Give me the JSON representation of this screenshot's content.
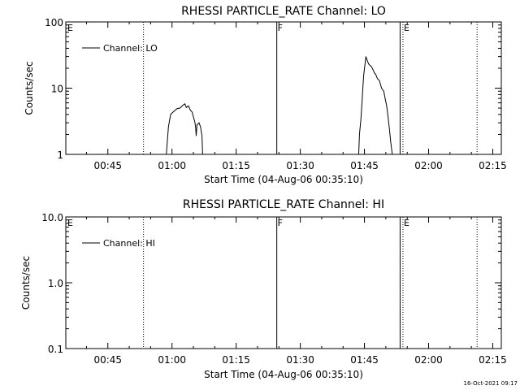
{
  "timestamp": "16-Oct-2021 09:17",
  "chart_data": [
    {
      "type": "line",
      "title": "RHESSI PARTICLE_RATE Channel: LO",
      "xlabel": "Start Time (04-Aug-06 00:35:10)",
      "ylabel": "Counts/sec",
      "y_scale": "log",
      "ylim": [
        1,
        100
      ],
      "xlim": [
        "00:35:10",
        "02:17:00"
      ],
      "x_ticks": [
        "00:45",
        "01:00",
        "01:15",
        "01:30",
        "01:45",
        "02:00",
        "02:15"
      ],
      "y_ticks": [
        "1",
        "10",
        "100"
      ],
      "legend": {
        "placement": "top-left",
        "entries": [
          "Channel: LO"
        ]
      },
      "markers": [
        {
          "label": "E",
          "time": "00:35:10",
          "style": "none"
        },
        {
          "label": "",
          "time": "00:53:20",
          "style": "dotted"
        },
        {
          "label": "F",
          "time": "01:24:30",
          "style": "solid"
        },
        {
          "label": "",
          "time": "01:53:20",
          "style": "solid"
        },
        {
          "label": "E",
          "time": "01:54:00",
          "style": "dotted"
        },
        {
          "label": "",
          "time": "02:11:20",
          "style": "dotted"
        }
      ],
      "series": [
        {
          "name": "Channel: LO",
          "segments": [
            [
              [
                "00:58:40",
                1.0
              ],
              [
                "00:59:10",
                2.6
              ],
              [
                "00:59:40",
                4.0
              ],
              [
                "01:00:30",
                4.5
              ],
              [
                "01:01:10",
                4.9
              ],
              [
                "01:01:50",
                5.0
              ],
              [
                "01:02:30",
                5.5
              ],
              [
                "01:03:00",
                5.8
              ],
              [
                "01:03:20",
                5.1
              ],
              [
                "01:03:50",
                5.4
              ],
              [
                "01:04:20",
                4.6
              ],
              [
                "01:04:40",
                4.4
              ],
              [
                "01:05:00",
                3.7
              ],
              [
                "01:05:20",
                3.1
              ],
              [
                "01:05:30",
                2.6
              ],
              [
                "01:05:40",
                1.9
              ],
              [
                "01:05:50",
                2.8
              ],
              [
                "01:06:20",
                3.0
              ],
              [
                "01:06:40",
                2.6
              ],
              [
                "01:07:00",
                1.9
              ],
              [
                "01:07:10",
                1.0
              ]
            ],
            [
              [
                "01:43:40",
                1.0
              ],
              [
                "01:43:50",
                2.0
              ],
              [
                "01:44:10",
                3.4
              ],
              [
                "01:44:20",
                5.0
              ],
              [
                "01:44:40",
                11.0
              ],
              [
                "01:44:50",
                16.0
              ],
              [
                "01:45:10",
                24.0
              ],
              [
                "01:45:20",
                30.0
              ],
              [
                "01:45:40",
                26.0
              ],
              [
                "01:46:00",
                23.0
              ],
              [
                "01:46:20",
                22.0
              ],
              [
                "01:46:40",
                21.0
              ],
              [
                "01:47:00",
                19.0
              ],
              [
                "01:47:20",
                17.0
              ],
              [
                "01:47:40",
                16.0
              ],
              [
                "01:48:00",
                14.0
              ],
              [
                "01:48:30",
                13.0
              ],
              [
                "01:49:00",
                10.0
              ],
              [
                "01:49:30",
                9.0
              ],
              [
                "01:49:50",
                7.0
              ],
              [
                "01:50:10",
                5.5
              ],
              [
                "01:50:30",
                3.8
              ],
              [
                "01:50:50",
                2.4
              ],
              [
                "01:51:10",
                1.5
              ],
              [
                "01:51:30",
                1.0
              ]
            ]
          ]
        }
      ]
    },
    {
      "type": "line",
      "title": "RHESSI PARTICLE_RATE Channel: HI",
      "xlabel": "Start Time (04-Aug-06 00:35:10)",
      "ylabel": "Counts/sec",
      "y_scale": "log",
      "ylim": [
        0.1,
        10
      ],
      "xlim": [
        "00:35:10",
        "02:17:00"
      ],
      "x_ticks": [
        "00:45",
        "01:00",
        "01:15",
        "01:30",
        "01:45",
        "02:00",
        "02:15"
      ],
      "y_ticks": [
        "0.1",
        "1.0",
        "10.0"
      ],
      "legend": {
        "placement": "top-left",
        "entries": [
          "Channel: HI"
        ]
      },
      "markers": [
        {
          "label": "E",
          "time": "00:35:10",
          "style": "none"
        },
        {
          "label": "",
          "time": "00:53:20",
          "style": "dotted"
        },
        {
          "label": "F",
          "time": "01:24:30",
          "style": "solid"
        },
        {
          "label": "",
          "time": "01:53:20",
          "style": "solid"
        },
        {
          "label": "E",
          "time": "01:54:00",
          "style": "dotted"
        },
        {
          "label": "",
          "time": "02:11:20",
          "style": "dotted"
        }
      ],
      "series": [
        {
          "name": "Channel: HI",
          "segments": []
        }
      ]
    }
  ]
}
